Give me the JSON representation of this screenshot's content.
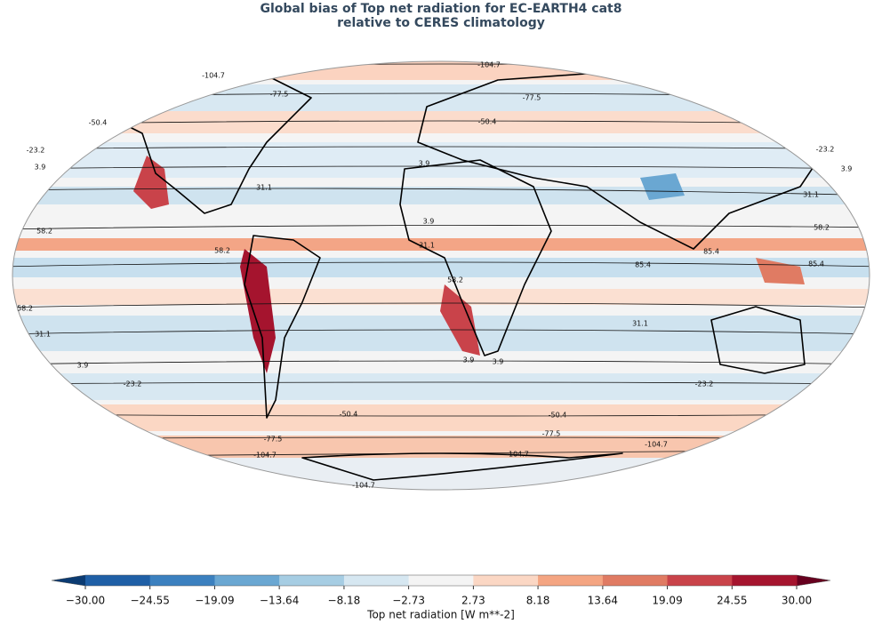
{
  "title": "Global bias of Top net radiation for EC-EARTH4 cat8",
  "subtitle": "relative to CERES climatology",
  "contour_labels": [
    -104.7,
    -104.7,
    -77.5,
    -77.5,
    -50.4,
    -50.4,
    -23.2,
    -23.2,
    3.9,
    3.9,
    3.9,
    31.1,
    31.1,
    3.9,
    31.1,
    58.2,
    58.2,
    58.2,
    85.4,
    85.4,
    85.4,
    58.2,
    31.1,
    31.1,
    58.2,
    3.9,
    3.9,
    3.9,
    -23.2,
    -23.2,
    -50.4,
    -50.4,
    -77.5,
    -77.5,
    -104.7,
    -104.7,
    -104.7,
    -104.7
  ],
  "colorbar": {
    "label": "Top net radiation [W m**-2]",
    "ticks": [
      {
        "value": -30,
        "label": "−30.00"
      },
      {
        "value": -24.55,
        "label": "−24.55"
      },
      {
        "value": -19.09,
        "label": "−19.09"
      },
      {
        "value": -13.64,
        "label": "−13.64"
      },
      {
        "value": -8.18,
        "label": "−8.18"
      },
      {
        "value": -2.73,
        "label": "−2.73"
      },
      {
        "value": 2.73,
        "label": "2.73"
      },
      {
        "value": 8.18,
        "label": "8.18"
      },
      {
        "value": 13.64,
        "label": "13.64"
      },
      {
        "value": 19.09,
        "label": "19.09"
      },
      {
        "value": 24.55,
        "label": "24.55"
      },
      {
        "value": 30,
        "label": "30.00"
      }
    ],
    "colors": [
      "#1f5fa6",
      "#3b80bf",
      "#6aa7d2",
      "#a6cde3",
      "#d6e7f1",
      "#f4f4f4",
      "#fbd7c4",
      "#f4a582",
      "#e07b63",
      "#c9434a",
      "#a5142e"
    ],
    "under_color": "#0b3b72",
    "over_color": "#67001f"
  }
}
